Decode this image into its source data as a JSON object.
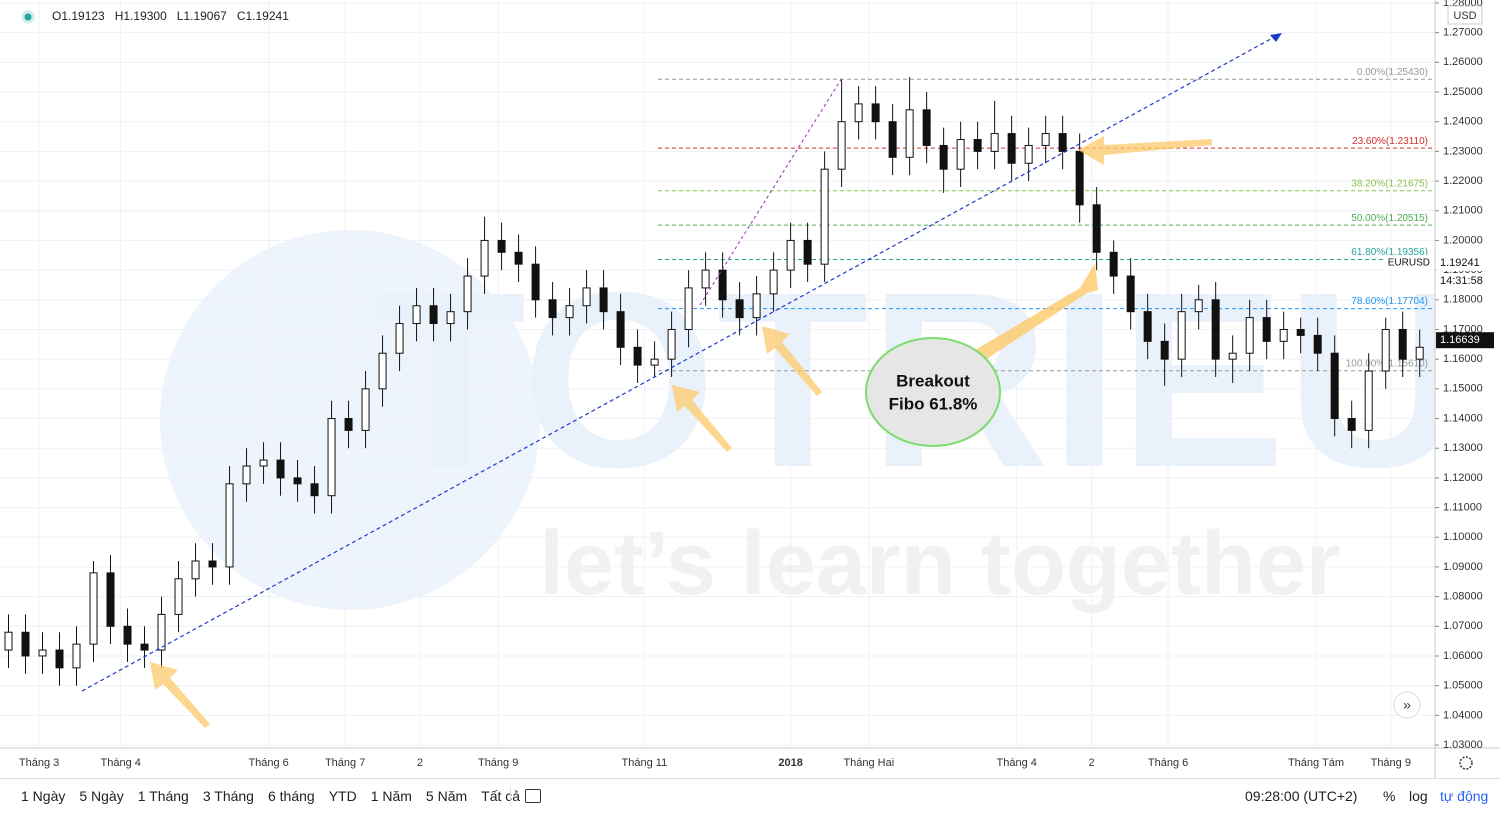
{
  "chart_data": {
    "type": "candlestick",
    "legend_ohlc": [
      "O1.19123",
      "H1.19300",
      "L1.19067",
      "C1.19241"
    ],
    "candles": [
      [
        1.062,
        1.074,
        1.056,
        1.068
      ],
      [
        1.068,
        1.074,
        1.054,
        1.06
      ],
      [
        1.06,
        1.068,
        1.054,
        1.062
      ],
      [
        1.062,
        1.068,
        1.05,
        1.056
      ],
      [
        1.056,
        1.07,
        1.05,
        1.064
      ],
      [
        1.064,
        1.092,
        1.058,
        1.088
      ],
      [
        1.088,
        1.094,
        1.064,
        1.07
      ],
      [
        1.07,
        1.076,
        1.058,
        1.064
      ],
      [
        1.064,
        1.07,
        1.056,
        1.062
      ],
      [
        1.062,
        1.08,
        1.056,
        1.074
      ],
      [
        1.074,
        1.092,
        1.068,
        1.086
      ],
      [
        1.086,
        1.098,
        1.08,
        1.092
      ],
      [
        1.092,
        1.098,
        1.084,
        1.09
      ],
      [
        1.09,
        1.124,
        1.084,
        1.118
      ],
      [
        1.118,
        1.13,
        1.112,
        1.124
      ],
      [
        1.124,
        1.132,
        1.118,
        1.126
      ],
      [
        1.126,
        1.132,
        1.114,
        1.12
      ],
      [
        1.12,
        1.126,
        1.112,
        1.118
      ],
      [
        1.118,
        1.124,
        1.108,
        1.114
      ],
      [
        1.114,
        1.146,
        1.108,
        1.14
      ],
      [
        1.14,
        1.146,
        1.13,
        1.136
      ],
      [
        1.136,
        1.156,
        1.13,
        1.15
      ],
      [
        1.15,
        1.168,
        1.144,
        1.162
      ],
      [
        1.162,
        1.178,
        1.156,
        1.172
      ],
      [
        1.172,
        1.184,
        1.166,
        1.178
      ],
      [
        1.178,
        1.184,
        1.166,
        1.172
      ],
      [
        1.172,
        1.182,
        1.166,
        1.176
      ],
      [
        1.176,
        1.194,
        1.17,
        1.188
      ],
      [
        1.188,
        1.208,
        1.182,
        1.2
      ],
      [
        1.2,
        1.206,
        1.19,
        1.196
      ],
      [
        1.196,
        1.202,
        1.186,
        1.192
      ],
      [
        1.192,
        1.198,
        1.174,
        1.18
      ],
      [
        1.18,
        1.186,
        1.168,
        1.174
      ],
      [
        1.174,
        1.184,
        1.168,
        1.178
      ],
      [
        1.178,
        1.19,
        1.172,
        1.184
      ],
      [
        1.184,
        1.19,
        1.17,
        1.176
      ],
      [
        1.176,
        1.182,
        1.158,
        1.164
      ],
      [
        1.164,
        1.17,
        1.152,
        1.158
      ],
      [
        1.158,
        1.166,
        1.154,
        1.16
      ],
      [
        1.16,
        1.176,
        1.154,
        1.17
      ],
      [
        1.17,
        1.19,
        1.164,
        1.184
      ],
      [
        1.184,
        1.196,
        1.178,
        1.19
      ],
      [
        1.19,
        1.196,
        1.174,
        1.18
      ],
      [
        1.18,
        1.186,
        1.168,
        1.174
      ],
      [
        1.174,
        1.188,
        1.168,
        1.182
      ],
      [
        1.182,
        1.196,
        1.176,
        1.19
      ],
      [
        1.19,
        1.206,
        1.184,
        1.2
      ],
      [
        1.2,
        1.206,
        1.186,
        1.192
      ],
      [
        1.192,
        1.23,
        1.186,
        1.224
      ],
      [
        1.224,
        1.254,
        1.218,
        1.24
      ],
      [
        1.24,
        1.252,
        1.234,
        1.246
      ],
      [
        1.246,
        1.252,
        1.234,
        1.24
      ],
      [
        1.24,
        1.246,
        1.222,
        1.228
      ],
      [
        1.228,
        1.255,
        1.222,
        1.244
      ],
      [
        1.244,
        1.25,
        1.226,
        1.232
      ],
      [
        1.232,
        1.238,
        1.216,
        1.224
      ],
      [
        1.224,
        1.24,
        1.218,
        1.234
      ],
      [
        1.234,
        1.24,
        1.224,
        1.23
      ],
      [
        1.23,
        1.247,
        1.224,
        1.236
      ],
      [
        1.236,
        1.242,
        1.22,
        1.226
      ],
      [
        1.226,
        1.238,
        1.22,
        1.232
      ],
      [
        1.232,
        1.242,
        1.226,
        1.236
      ],
      [
        1.236,
        1.242,
        1.224,
        1.23
      ],
      [
        1.23,
        1.236,
        1.206,
        1.212
      ],
      [
        1.212,
        1.218,
        1.19,
        1.196
      ],
      [
        1.196,
        1.2,
        1.182,
        1.188
      ],
      [
        1.188,
        1.194,
        1.17,
        1.176
      ],
      [
        1.176,
        1.182,
        1.16,
        1.166
      ],
      [
        1.166,
        1.172,
        1.151,
        1.16
      ],
      [
        1.16,
        1.182,
        1.154,
        1.176
      ],
      [
        1.176,
        1.185,
        1.17,
        1.18
      ],
      [
        1.18,
        1.186,
        1.154,
        1.16
      ],
      [
        1.16,
        1.168,
        1.152,
        1.162
      ],
      [
        1.162,
        1.18,
        1.156,
        1.174
      ],
      [
        1.174,
        1.18,
        1.16,
        1.166
      ],
      [
        1.166,
        1.176,
        1.16,
        1.17
      ],
      [
        1.17,
        1.174,
        1.162,
        1.168
      ],
      [
        1.168,
        1.174,
        1.156,
        1.162
      ],
      [
        1.162,
        1.168,
        1.134,
        1.14
      ],
      [
        1.14,
        1.146,
        1.13,
        1.136
      ],
      [
        1.136,
        1.162,
        1.13,
        1.156
      ],
      [
        1.156,
        1.174,
        1.15,
        1.17
      ],
      [
        1.17,
        1.176,
        1.154,
        1.16
      ],
      [
        1.16,
        1.17,
        1.154,
        1.164
      ]
    ],
    "up_color": "#ffffff",
    "down_color": "#111111",
    "wick_color": "#111111",
    "xlim": [
      -0.5,
      83.9
    ],
    "xticks": [
      {
        "value": 1.8,
        "label": "Tháng 3"
      },
      {
        "value": 6.6,
        "label": "Tháng 4"
      },
      {
        "value": 15.3,
        "label": "Tháng 6"
      },
      {
        "value": 19.8,
        "label": "Tháng 7"
      },
      {
        "value": 24.2,
        "label": "2"
      },
      {
        "value": 28.8,
        "label": "Tháng 9"
      },
      {
        "value": 37.4,
        "label": "Tháng 11"
      },
      {
        "value": 46,
        "label": "2018"
      },
      {
        "value": 50.6,
        "label": "Tháng Hai"
      },
      {
        "value": 59.3,
        "label": "Tháng 4"
      },
      {
        "value": 63.7,
        "label": "2"
      },
      {
        "value": 68.2,
        "label": "Tháng 6"
      },
      {
        "value": 76.9,
        "label": "Tháng Tám"
      },
      {
        "value": 81.3,
        "label": "Tháng 9"
      }
    ],
    "ylim": [
      1.029,
      1.281
    ],
    "currency": "USD",
    "yticks": [
      {
        "value": 1.03,
        "label": "1.03000"
      },
      {
        "value": 1.04,
        "label": "1.04000"
      },
      {
        "value": 1.05,
        "label": "1.05000"
      },
      {
        "value": 1.06,
        "label": "1.06000"
      },
      {
        "value": 1.07,
        "label": "1.07000"
      },
      {
        "value": 1.08,
        "label": "1.08000"
      },
      {
        "value": 1.09,
        "label": "1.09000"
      },
      {
        "value": 1.1,
        "label": "1.10000"
      },
      {
        "value": 1.11,
        "label": "1.11000"
      },
      {
        "value": 1.12,
        "label": "1.12000"
      },
      {
        "value": 1.13,
        "label": "1.13000"
      },
      {
        "value": 1.14,
        "label": "1.14000"
      },
      {
        "value": 1.15,
        "label": "1.15000"
      },
      {
        "value": 1.16,
        "label": "1.16000"
      },
      {
        "value": 1.17,
        "label": "1.17000"
      },
      {
        "value": 1.18,
        "label": "1.18000"
      },
      {
        "value": 1.19,
        "label": "1.19000"
      },
      {
        "value": 1.2,
        "label": "1.20000"
      },
      {
        "value": 1.21,
        "label": "1.21000"
      },
      {
        "value": 1.22,
        "label": "1.22000"
      },
      {
        "value": 1.23,
        "label": "1.23000"
      },
      {
        "value": 1.24,
        "label": "1.24000"
      },
      {
        "value": 1.25,
        "label": "1.25000"
      },
      {
        "value": 1.26,
        "label": "1.26000"
      },
      {
        "value": 1.27,
        "label": "1.27000"
      },
      {
        "value": 1.28,
        "label": "1.28000"
      }
    ],
    "grid": true,
    "fib_levels": [
      {
        "value": 1.2543,
        "label": "0.00%(1.25430)",
        "color": "#999999"
      },
      {
        "value": 1.2311,
        "label": "23.60%(1.23110)",
        "color": "#d32f2f"
      },
      {
        "value": 1.21675,
        "label": "38.20%(1.21675)",
        "color": "#8bc34a"
      },
      {
        "value": 1.20515,
        "label": "50.00%(1.20515)",
        "color": "#4caf50"
      },
      {
        "value": 1.19356,
        "label": "61.80%(1.19356)",
        "color": "#26a69a"
      },
      {
        "value": 1.17704,
        "label": "78.60%(1.17704)",
        "color": "#2196f3"
      },
      {
        "value": 1.1561,
        "label": "100.00%(1.15610)",
        "color": "#999999"
      }
    ],
    "price_tags": [
      {
        "value": 1.19241,
        "label": "1.19241",
        "symbol": "EURUSD",
        "countdown": "14:31:58"
      },
      {
        "value": 1.16639,
        "label": "1.16639"
      }
    ],
    "callout": [
      "Breakout",
      "Fibo 61.8%"
    ],
    "watermark": [
      "TOTRIEU",
      "let’s learn together"
    ]
  },
  "toolbar": {
    "ranges": [
      "1 Ngày",
      "5 Ngày",
      "1 Tháng",
      "3 Tháng",
      "6 tháng",
      "YTD",
      "1 Năm",
      "5 Năm",
      "Tất cả"
    ],
    "time": "09:28:00 (UTC+2)",
    "options": [
      "%",
      "log",
      "tự động"
    ]
  }
}
